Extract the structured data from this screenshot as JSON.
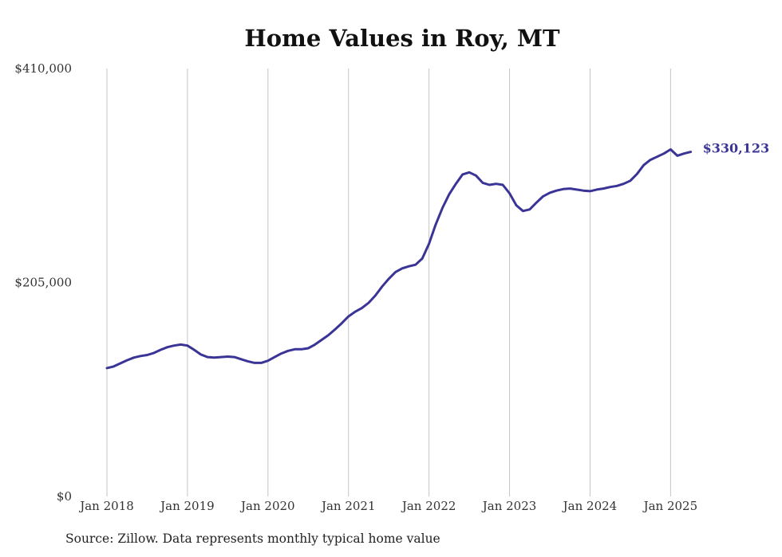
{
  "chart_data": {
    "type": "line",
    "title": "Home Values in Roy, MT",
    "source": "Source: Zillow. Data represents monthly typical home value",
    "y_ticks": [
      {
        "value": 0,
        "label": "$0"
      },
      {
        "value": 205000,
        "label": "$205,000"
      },
      {
        "value": 410000,
        "label": "$410,000"
      }
    ],
    "ylim": [
      0,
      410000
    ],
    "x_ticks": [
      {
        "date": "2018-01",
        "label": "Jan 2018"
      },
      {
        "date": "2019-01",
        "label": "Jan 2019"
      },
      {
        "date": "2020-01",
        "label": "Jan 2020"
      },
      {
        "date": "2021-01",
        "label": "Jan 2021"
      },
      {
        "date": "2022-01",
        "label": "Jan 2022"
      },
      {
        "date": "2023-01",
        "label": "Jan 2023"
      },
      {
        "date": "2024-01",
        "label": "Jan 2024"
      },
      {
        "date": "2025-01",
        "label": "Jan 2025"
      }
    ],
    "xlim": [
      "2018-01",
      "2025-05"
    ],
    "grid": {
      "vertical": true,
      "horizontal": false
    },
    "line_color": "#3b3497",
    "end_label": "$330,123",
    "series": [
      {
        "points": [
          [
            "2018-01",
            123000
          ],
          [
            "2018-02",
            124500
          ],
          [
            "2018-03",
            127500
          ],
          [
            "2018-04",
            130500
          ],
          [
            "2018-05",
            133000
          ],
          [
            "2018-06",
            134500
          ],
          [
            "2018-07",
            135500
          ],
          [
            "2018-08",
            137500
          ],
          [
            "2018-09",
            140500
          ],
          [
            "2018-10",
            143000
          ],
          [
            "2018-11",
            144500
          ],
          [
            "2018-12",
            145500
          ],
          [
            "2019-01",
            144500
          ],
          [
            "2019-02",
            140500
          ],
          [
            "2019-03",
            136000
          ],
          [
            "2019-04",
            133500
          ],
          [
            "2019-05",
            133000
          ],
          [
            "2019-06",
            133500
          ],
          [
            "2019-07",
            134000
          ],
          [
            "2019-08",
            133500
          ],
          [
            "2019-09",
            131500
          ],
          [
            "2019-10",
            129500
          ],
          [
            "2019-11",
            128000
          ],
          [
            "2019-12",
            128000
          ],
          [
            "2020-01",
            130000
          ],
          [
            "2020-02",
            133500
          ],
          [
            "2020-03",
            137000
          ],
          [
            "2020-04",
            139500
          ],
          [
            "2020-05",
            141000
          ],
          [
            "2020-06",
            141000
          ],
          [
            "2020-07",
            142000
          ],
          [
            "2020-08",
            145500
          ],
          [
            "2020-09",
            150000
          ],
          [
            "2020-10",
            154500
          ],
          [
            "2020-11",
            160000
          ],
          [
            "2020-12",
            166000
          ],
          [
            "2021-01",
            172500
          ],
          [
            "2021-02",
            177000
          ],
          [
            "2021-03",
            180500
          ],
          [
            "2021-04",
            185500
          ],
          [
            "2021-05",
            192500
          ],
          [
            "2021-06",
            201000
          ],
          [
            "2021-07",
            208500
          ],
          [
            "2021-08",
            215000
          ],
          [
            "2021-09",
            218500
          ],
          [
            "2021-10",
            220500
          ],
          [
            "2021-11",
            222000
          ],
          [
            "2021-12",
            228000
          ],
          [
            "2022-01",
            242000
          ],
          [
            "2022-02",
            260500
          ],
          [
            "2022-03",
            276500
          ],
          [
            "2022-04",
            289500
          ],
          [
            "2022-05",
            299500
          ],
          [
            "2022-06",
            308500
          ],
          [
            "2022-07",
            310500
          ],
          [
            "2022-08",
            307500
          ],
          [
            "2022-09",
            300500
          ],
          [
            "2022-10",
            298500
          ],
          [
            "2022-11",
            299500
          ],
          [
            "2022-12",
            298500
          ],
          [
            "2023-01",
            290500
          ],
          [
            "2023-02",
            279000
          ],
          [
            "2023-03",
            273500
          ],
          [
            "2023-04",
            275000
          ],
          [
            "2023-05",
            281500
          ],
          [
            "2023-06",
            287500
          ],
          [
            "2023-07",
            291000
          ],
          [
            "2023-08",
            293000
          ],
          [
            "2023-09",
            294500
          ],
          [
            "2023-10",
            295000
          ],
          [
            "2023-11",
            294000
          ],
          [
            "2023-12",
            293000
          ],
          [
            "2024-01",
            292500
          ],
          [
            "2024-02",
            294000
          ],
          [
            "2024-03",
            295000
          ],
          [
            "2024-04",
            296500
          ],
          [
            "2024-05",
            297500
          ],
          [
            "2024-06",
            299500
          ],
          [
            "2024-07",
            302500
          ],
          [
            "2024-08",
            309000
          ],
          [
            "2024-09",
            317500
          ],
          [
            "2024-10",
            322500
          ],
          [
            "2024-11",
            325500
          ],
          [
            "2024-12",
            328500
          ],
          [
            "2025-01",
            332500
          ],
          [
            "2025-02",
            326500
          ],
          [
            "2025-03",
            328500
          ],
          [
            "2025-04",
            330123
          ]
        ]
      }
    ]
  }
}
